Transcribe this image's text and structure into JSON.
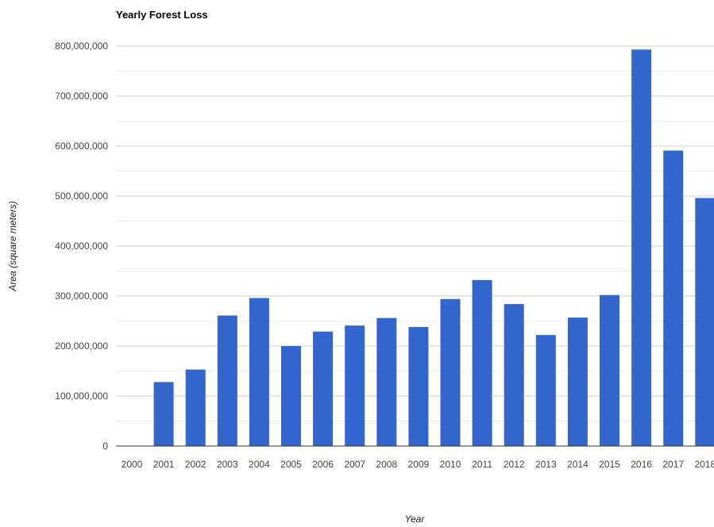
{
  "chart_data": {
    "type": "bar",
    "title": "Yearly Forest Loss",
    "xlabel": "Year",
    "ylabel": "Area (square meters)",
    "ylim": [
      0,
      800000000
    ],
    "y_ticks": [
      "0",
      "100,000,000",
      "200,000,000",
      "300,000,000",
      "400,000,000",
      "500,000,000",
      "600,000,000",
      "700,000,000",
      "800,000,000"
    ],
    "categories": [
      "2000",
      "2001",
      "2002",
      "2003",
      "2004",
      "2005",
      "2006",
      "2007",
      "2008",
      "2009",
      "2010",
      "2011",
      "2012",
      "2013",
      "2014",
      "2015",
      "2016",
      "2017",
      "2018"
    ],
    "values": [
      0,
      128000000,
      153000000,
      261000000,
      296000000,
      200000000,
      229000000,
      241000000,
      256000000,
      238000000,
      294000000,
      332000000,
      284000000,
      222000000,
      257000000,
      302000000,
      793000000,
      591000000,
      496000000
    ],
    "bar_color": "#3366cc",
    "grid": true,
    "legend": "none"
  }
}
